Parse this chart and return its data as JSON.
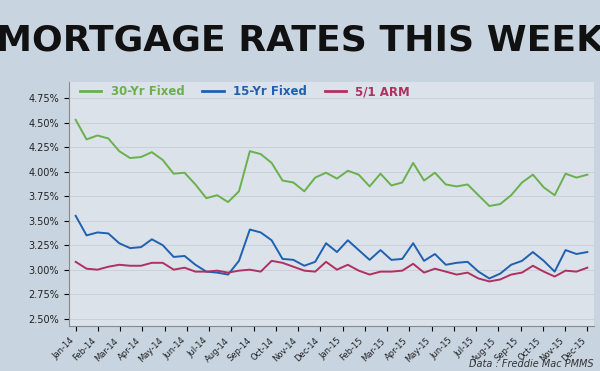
{
  "title": "MORTGAGE RATES THIS WEEK",
  "title_fontsize": 26,
  "title_fontweight": "bold",
  "footnote": "Data : Freddie Mac PMMS",
  "legend_labels": [
    "30-Yr Fixed",
    "15-Yr Fixed",
    "5/1 ARM"
  ],
  "line_colors": [
    "#6ab04c",
    "#2060b0",
    "#b03060"
  ],
  "x_labels": [
    "Jan-14",
    "Feb-14",
    "Mar-14",
    "Apr-14",
    "May-14",
    "Jun-14",
    "Jul-14",
    "Aug-14",
    "Sep-14",
    "Oct-14",
    "Nov-14",
    "Dec-14",
    "Jan-15",
    "Feb-15",
    "Mar-15",
    "Apr-15",
    "May-15",
    "Jun-15",
    "Jul-15",
    "Aug-15",
    "Sep-15",
    "Oct-15",
    "Nov-15",
    "Dec-15"
  ],
  "yticks": [
    2.5,
    2.75,
    3.0,
    3.25,
    3.5,
    3.75,
    4.0,
    4.25,
    4.5,
    4.75
  ],
  "ylim": [
    2.42,
    4.92
  ],
  "bg_color": "#c8d4e0",
  "rate_30yr": [
    4.53,
    4.33,
    4.37,
    4.34,
    4.21,
    4.14,
    4.15,
    4.2,
    4.12,
    3.98,
    3.99,
    3.87,
    3.73,
    3.76,
    3.69,
    3.8,
    4.21,
    4.18,
    4.09,
    3.91,
    3.89,
    3.8,
    3.94,
    3.99,
    3.93,
    4.01,
    3.97,
    3.85,
    3.98,
    3.86,
    3.89,
    4.09,
    3.91,
    3.99,
    3.87,
    3.85,
    3.87,
    3.76,
    3.65,
    3.67,
    3.76,
    3.89,
    3.97,
    3.84,
    3.76,
    3.98,
    3.94,
    3.97
  ],
  "rate_15yr": [
    3.55,
    3.35,
    3.38,
    3.37,
    3.27,
    3.22,
    3.23,
    3.31,
    3.25,
    3.13,
    3.14,
    3.05,
    2.98,
    2.97,
    2.95,
    3.09,
    3.41,
    3.38,
    3.3,
    3.11,
    3.1,
    3.04,
    3.08,
    3.27,
    3.18,
    3.3,
    3.2,
    3.1,
    3.2,
    3.1,
    3.11,
    3.27,
    3.09,
    3.16,
    3.05,
    3.07,
    3.08,
    2.98,
    2.91,
    2.96,
    3.05,
    3.09,
    3.18,
    3.09,
    2.98,
    3.2,
    3.16,
    3.18
  ],
  "rate_51arm": [
    3.08,
    3.01,
    3.0,
    3.03,
    3.05,
    3.04,
    3.04,
    3.07,
    3.07,
    3.0,
    3.02,
    2.98,
    2.98,
    2.99,
    2.97,
    2.99,
    3.0,
    2.98,
    3.09,
    3.07,
    3.03,
    2.99,
    2.98,
    3.08,
    3.0,
    3.05,
    2.99,
    2.95,
    2.98,
    2.98,
    2.99,
    3.06,
    2.97,
    3.01,
    2.98,
    2.95,
    2.97,
    2.91,
    2.88,
    2.9,
    2.95,
    2.97,
    3.04,
    2.98,
    2.93,
    2.99,
    2.98,
    3.02
  ]
}
